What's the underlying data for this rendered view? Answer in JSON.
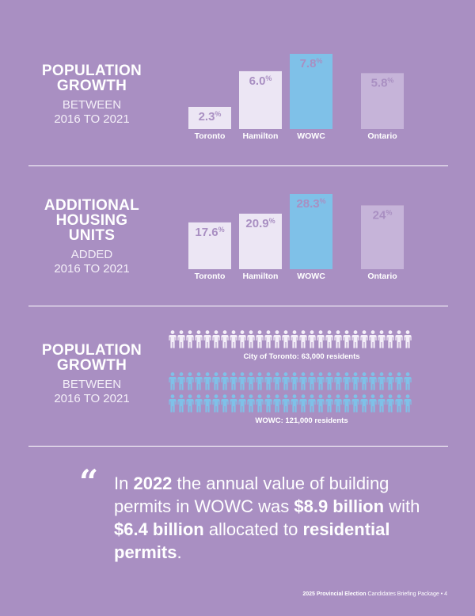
{
  "colors": {
    "background": "#a98fc2",
    "bar_light": "#ece6f4",
    "bar_highlight": "#7fc1e8",
    "bar_ontario": "#c6b4d9",
    "value_text": "#a98fc2",
    "toronto_icons": "#f3eef8",
    "wowc_icons": "#7fc1e8"
  },
  "section_population": {
    "heading": "POPULATION\nGROWTH",
    "subheading": "BETWEEN\n2016 TO 2021"
  },
  "section_housing": {
    "heading": "ADDITIONAL\nHOUSING\nUNITS",
    "subheading": "ADDED\n2016 TO 2021"
  },
  "section_people": {
    "heading": "POPULATION\nGROWTH",
    "subheading": "BETWEEN\n2016 TO 2021",
    "toronto_caption": "City of Toronto: 63,000 residents",
    "wowc_caption": "WOWC: 121,000 residents",
    "toronto_icon_count": 28,
    "wowc_icon_count": 56,
    "person_icon": "person-icon"
  },
  "quote": {
    "mark": "“",
    "p1": "In ",
    "b1": "2022",
    "p2": " the annual value of building permits in WOWC was ",
    "b2": "$8.9 billion",
    "p3": " with ",
    "b3": "$6.4 billion",
    "p4": " allocated to ",
    "b4": "residential permits",
    "p5": "."
  },
  "footer": {
    "bold": "2025 Provincial Election",
    "text": " Candidates Briefing Package",
    "bullet": "•",
    "page": "4"
  },
  "chart_data": [
    {
      "type": "bar",
      "categories": [
        "Toronto",
        "Hamilton",
        "WOWC",
        "Ontario"
      ],
      "values": [
        2.3,
        6.0,
        7.8,
        5.8
      ],
      "value_labels": [
        "2.3",
        "6.0",
        "7.8",
        "5.8"
      ],
      "unit": "%",
      "highlight": "WOWC",
      "ylim": [
        0,
        7.8
      ]
    },
    {
      "type": "bar",
      "categories": [
        "Toronto",
        "Hamilton",
        "WOWC",
        "Ontario"
      ],
      "values": [
        17.6,
        20.9,
        28.3,
        24
      ],
      "value_labels": [
        "17.6",
        "20.9",
        "28.3",
        "24"
      ],
      "unit": "%",
      "highlight": "WOWC",
      "ylim": [
        0,
        28.3
      ]
    }
  ]
}
